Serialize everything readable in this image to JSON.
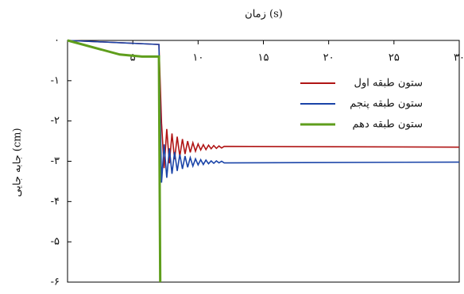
{
  "chart_data": {
    "type": "line",
    "title": "زمان (s)",
    "y_label": "جابه جایی (cm)",
    "xlim": [
      0,
      30
    ],
    "ylim": [
      -6,
      0
    ],
    "xticks": [
      {
        "value": 5,
        "label": "۵"
      },
      {
        "value": 10,
        "label": "۱۰"
      },
      {
        "value": 15,
        "label": "۱۵"
      },
      {
        "value": 20,
        "label": "۲۰"
      },
      {
        "value": 25,
        "label": "۲۵"
      },
      {
        "value": 30,
        "label": "۳۰"
      }
    ],
    "yticks": [
      {
        "value": 0,
        "label": "۰"
      },
      {
        "value": -1,
        "label": "-۱"
      },
      {
        "value": -2,
        "label": "-۲"
      },
      {
        "value": -3,
        "label": "-۳"
      },
      {
        "value": -4,
        "label": "-۴"
      },
      {
        "value": -5,
        "label": "-۵"
      },
      {
        "value": -6,
        "label": "-۶"
      }
    ],
    "legend": "upper right",
    "series": [
      {
        "name": "ستون طبقه اول",
        "color": "#b01515",
        "x": [
          0,
          7,
          7.2,
          7.4,
          7.6,
          7.8,
          8,
          8.2,
          8.4,
          8.6,
          8.8,
          9,
          9.2,
          9.4,
          9.6,
          9.8,
          10,
          10.2,
          10.4,
          10.6,
          10.8,
          11,
          11.2,
          11.4,
          11.6,
          11.8,
          12,
          30
        ],
        "values": [
          0,
          -0.1,
          -2.05,
          -3.17,
          -2.2,
          -3.05,
          -2.31,
          -2.95,
          -2.39,
          -2.88,
          -2.45,
          -2.82,
          -2.5,
          -2.78,
          -2.54,
          -2.75,
          -2.57,
          -2.72,
          -2.59,
          -2.71,
          -2.6,
          -2.69,
          -2.61,
          -2.68,
          -2.62,
          -2.67,
          -2.63,
          -2.65
        ]
      },
      {
        "name": "ستون طبقه پنجم",
        "color": "#1a44a8",
        "x": [
          0,
          7,
          7.2,
          7.4,
          7.6,
          7.8,
          8,
          8.2,
          8.4,
          8.6,
          8.8,
          9,
          9.2,
          9.4,
          9.6,
          9.8,
          10,
          10.2,
          10.4,
          10.6,
          10.8,
          11,
          11.2,
          11.4,
          11.6,
          11.8,
          12,
          30
        ],
        "values": [
          0,
          -0.1,
          -3.53,
          -2.58,
          -3.41,
          -2.68,
          -3.31,
          -2.77,
          -3.24,
          -2.83,
          -3.19,
          -2.87,
          -3.15,
          -2.91,
          -3.12,
          -2.94,
          -3.09,
          -2.96,
          -3.08,
          -2.97,
          -3.06,
          -2.99,
          -3.05,
          -2.99,
          -3.04,
          -3.0,
          -3.04,
          -3.02
        ]
      },
      {
        "name": "ستون طبقه دهم",
        "color": "#5f9e1c",
        "x": [
          0,
          4,
          5.7,
          7,
          7.1
        ],
        "values": [
          0,
          -0.35,
          -0.4,
          -0.4,
          -6
        ]
      }
    ]
  }
}
